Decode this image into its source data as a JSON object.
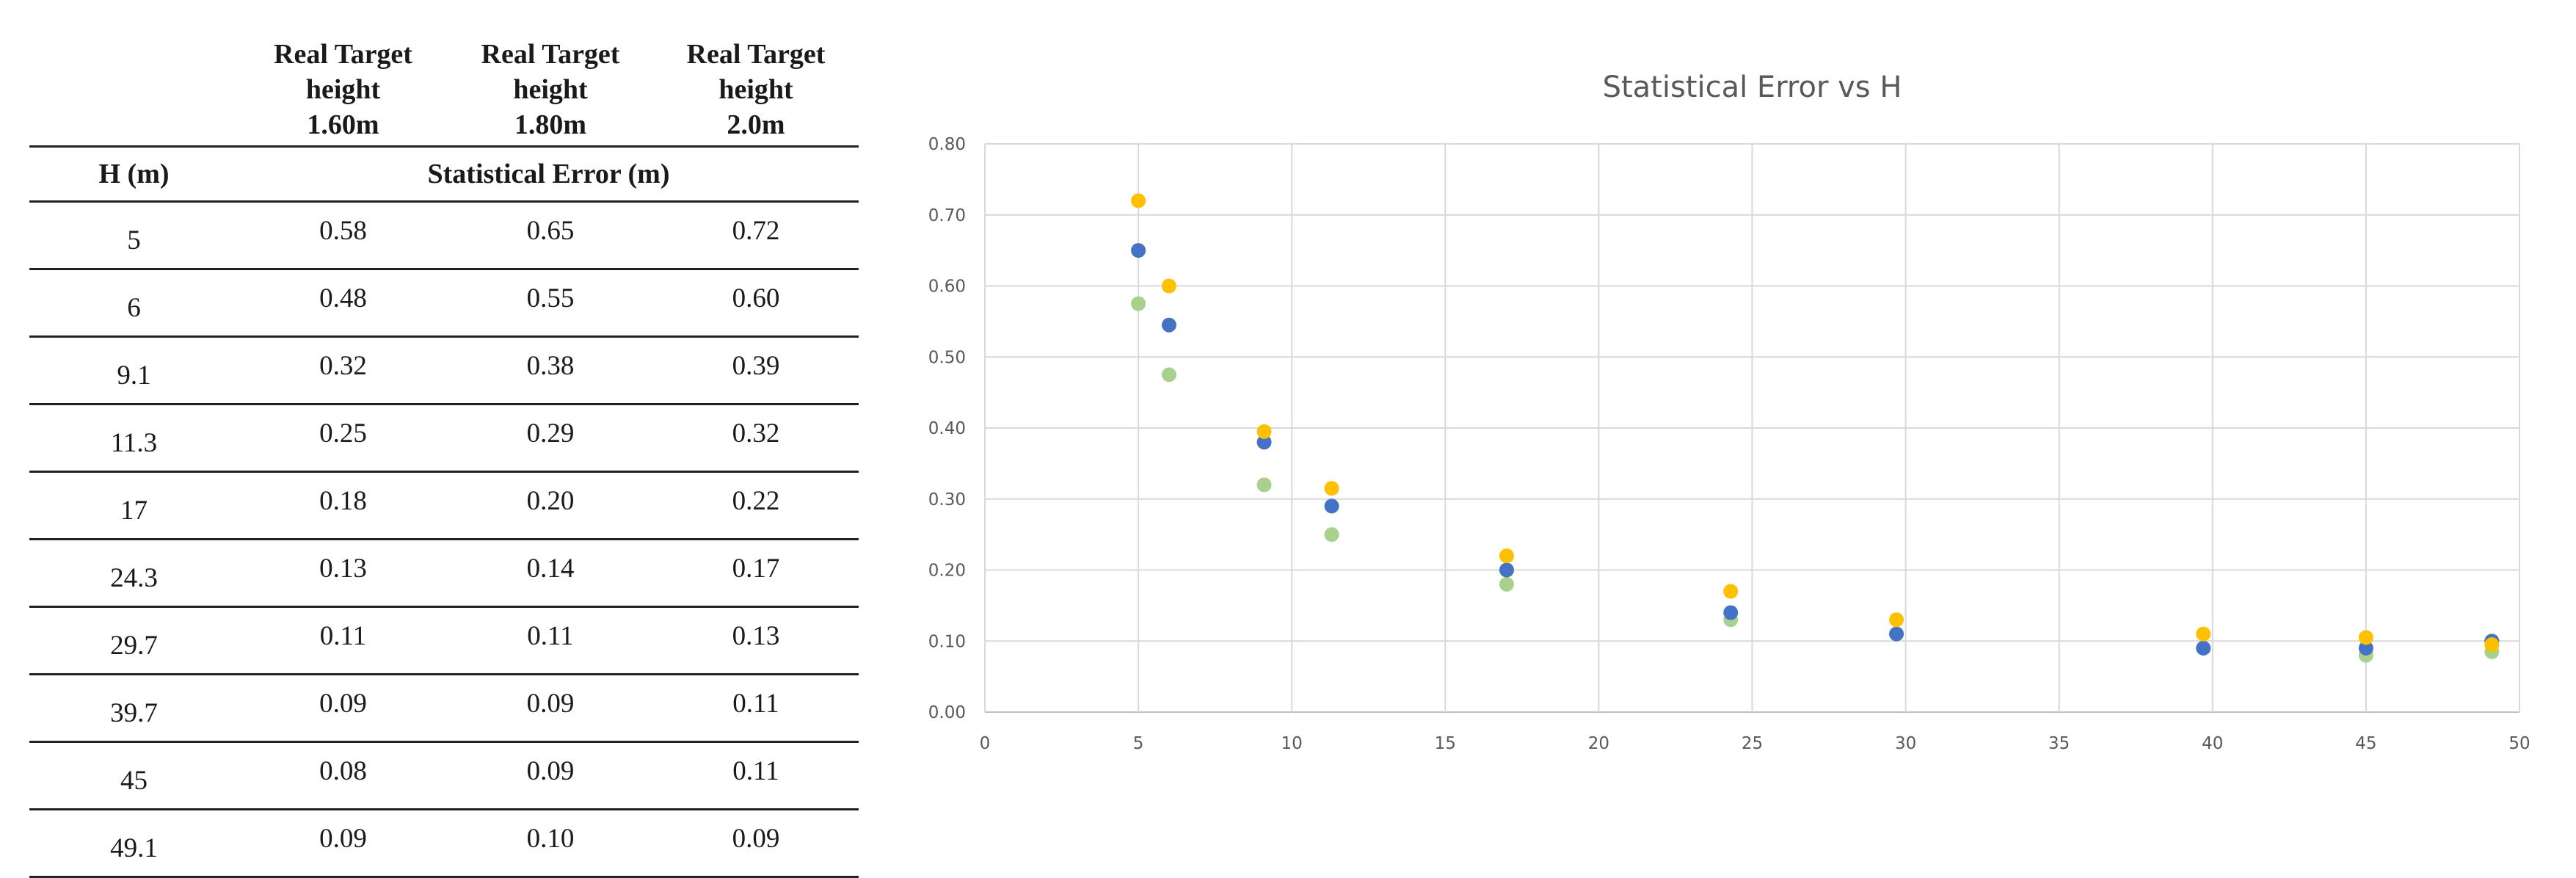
{
  "table": {
    "header_cells": [
      "",
      "Real Target height 1.60m",
      "Real Target height 1.80m",
      "Real Target height 2.0m"
    ],
    "header_lines": [
      [],
      [
        "Real Target",
        "height",
        "1.60m"
      ],
      [
        "Real Target",
        "height",
        "1.80m"
      ],
      [
        "Real Target",
        "height",
        "2.0m"
      ]
    ],
    "subheader": {
      "h_label": "H (m)",
      "error_label": "Statistical Error (m)"
    },
    "rows": [
      {
        "h": "5",
        "values": [
          "0.58",
          "0.65",
          "0.72"
        ]
      },
      {
        "h": "6",
        "values": [
          "0.48",
          "0.55",
          "0.60"
        ]
      },
      {
        "h": "9.1",
        "values": [
          "0.32",
          "0.38",
          "0.39"
        ]
      },
      {
        "h": "11.3",
        "values": [
          "0.25",
          "0.29",
          "0.32"
        ]
      },
      {
        "h": "17",
        "values": [
          "0.18",
          "0.20",
          "0.22"
        ]
      },
      {
        "h": "24.3",
        "values": [
          "0.13",
          "0.14",
          "0.17"
        ]
      },
      {
        "h": "29.7",
        "values": [
          "0.11",
          "0.11",
          "0.13"
        ]
      },
      {
        "h": "39.7",
        "values": [
          "0.09",
          "0.09",
          "0.11"
        ]
      },
      {
        "h": "45",
        "values": [
          "0.08",
          "0.09",
          "0.11"
        ]
      },
      {
        "h": "49.1",
        "values": [
          "0.09",
          "0.10",
          "0.09"
        ]
      }
    ]
  },
  "chart_data": {
    "type": "scatter",
    "title": "Statistical Error vs H",
    "xlabel": "",
    "ylabel": "",
    "xlim": [
      0,
      50
    ],
    "ylim": [
      0,
      0.8
    ],
    "x_ticks": [
      0,
      5,
      10,
      15,
      20,
      25,
      30,
      35,
      40,
      45,
      50
    ],
    "y_ticks": [
      0,
      0.1,
      0.2,
      0.3,
      0.4,
      0.5,
      0.6,
      0.7,
      0.8
    ],
    "x_tick_labels": [
      "0",
      "5",
      "10",
      "15",
      "20",
      "25",
      "30",
      "35",
      "40",
      "45",
      "50"
    ],
    "y_tick_labels": [
      "0.00",
      "0.10",
      "0.20",
      "0.30",
      "0.40",
      "0.50",
      "0.60",
      "0.70",
      "0.80"
    ],
    "grid": true,
    "legend": "none",
    "x": [
      5,
      6,
      9.1,
      11.3,
      17,
      24.3,
      29.7,
      39.7,
      45,
      49.1
    ],
    "series": [
      {
        "color": "#A9D18E",
        "values": [
          0.575,
          0.475,
          0.32,
          0.25,
          0.18,
          0.13,
          0.11,
          0.09,
          0.08,
          0.085
        ]
      },
      {
        "color": "#4472C4",
        "values": [
          0.65,
          0.545,
          0.38,
          0.29,
          0.2,
          0.14,
          0.11,
          0.09,
          0.09,
          0.1
        ]
      },
      {
        "color": "#FFC000",
        "values": [
          0.72,
          0.6,
          0.395,
          0.315,
          0.22,
          0.17,
          0.13,
          0.11,
          0.105,
          0.095
        ]
      }
    ]
  }
}
